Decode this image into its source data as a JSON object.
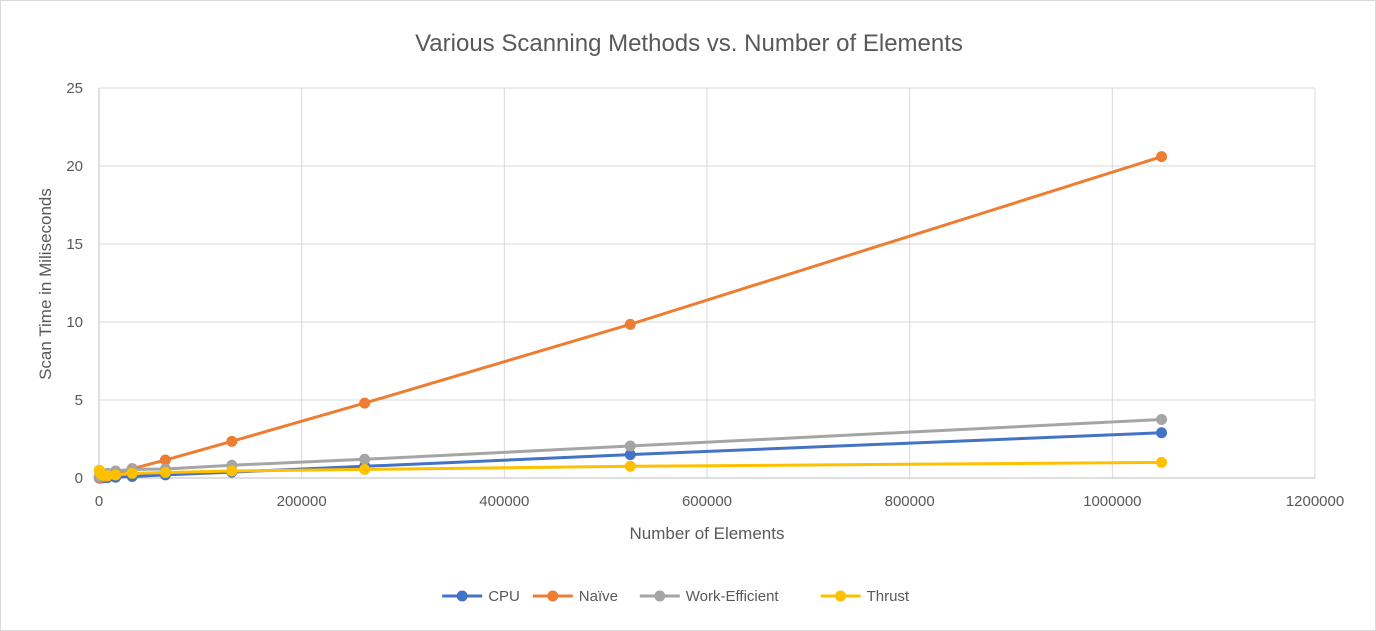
{
  "chart_data": {
    "type": "scatter",
    "mode": "lines+markers",
    "title": "Various Scanning Methods vs. Number of Elements",
    "xlabel": "Number of Elements",
    "ylabel": "Scan Time in Miliseconds",
    "xlim": [
      0,
      1200000
    ],
    "ylim": [
      0,
      25
    ],
    "x_ticks": [
      "0",
      "200000",
      "400000",
      "600000",
      "800000",
      "1000000",
      "1200000"
    ],
    "y_ticks": [
      "0",
      "5",
      "10",
      "15",
      "20",
      "25"
    ],
    "grid": true,
    "legend_position": "bottom",
    "x": [
      256,
      512,
      1024,
      2048,
      4096,
      8192,
      16384,
      32768,
      65536,
      131072,
      262144,
      524288,
      1048576
    ],
    "series": [
      {
        "name": "CPU",
        "color": "#4472C4",
        "values": [
          0.001,
          0.002,
          0.003,
          0.006,
          0.012,
          0.024,
          0.05,
          0.1,
          0.2,
          0.38,
          0.75,
          1.5,
          2.9
        ]
      },
      {
        "name": "Naïve",
        "color": "#ED7D31",
        "values": [
          0.03,
          0.04,
          0.05,
          0.06,
          0.08,
          0.12,
          0.25,
          0.6,
          1.15,
          2.35,
          4.8,
          9.85,
          20.6
        ]
      },
      {
        "name": "Work-Efficient",
        "color": "#A5A5A5",
        "values": [
          0.1,
          0.12,
          0.14,
          0.17,
          0.22,
          0.3,
          0.45,
          0.55,
          0.58,
          0.82,
          1.2,
          2.05,
          3.75
        ]
      },
      {
        "name": "Thrust",
        "color": "#FFC000",
        "values": [
          0.5,
          0.45,
          0.35,
          0.25,
          0.18,
          0.15,
          0.2,
          0.3,
          0.35,
          0.45,
          0.55,
          0.75,
          1.0
        ]
      }
    ]
  }
}
